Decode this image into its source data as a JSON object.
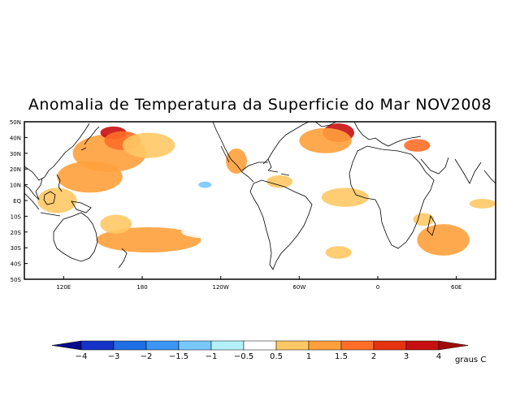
{
  "title": "Anomalia de Temperatura da Superficie do Mar NOV2008",
  "map": {
    "lat_labels": [
      "50N",
      "40N",
      "30N",
      "20N",
      "10N",
      "EQ",
      "10S",
      "20S",
      "30S",
      "40S",
      "50S"
    ],
    "lon_labels": [
      "120E",
      "180",
      "120W",
      "60W",
      "0",
      "60E"
    ],
    "lon_values": [
      120,
      180,
      240,
      300,
      360,
      420
    ],
    "lat_values": [
      50,
      40,
      30,
      20,
      10,
      0,
      -10,
      -20,
      -30,
      -40,
      -50
    ],
    "lon_range": [
      90,
      450
    ],
    "lat_range": [
      -50,
      50
    ],
    "anomaly_regions": [
      {
        "name": "NW Pacific warm",
        "lon": 155,
        "lat": 30,
        "rx": 28,
        "ry": 12,
        "value": 1
      },
      {
        "name": "Kuroshio extension",
        "lon": 158,
        "lat": 43,
        "rx": 10,
        "ry": 4,
        "value": 3
      },
      {
        "name": "Kuroshio extension core",
        "lon": 165,
        "lat": 38,
        "rx": 14,
        "ry": 6,
        "value": 1.5
      },
      {
        "name": "Central N Pacific warm",
        "lon": 185,
        "lat": 35,
        "rx": 20,
        "ry": 8,
        "value": 0.5
      },
      {
        "name": "Western Pacific warm",
        "lon": 140,
        "lat": 15,
        "rx": 25,
        "ry": 10,
        "value": 1
      },
      {
        "name": "Maritime continent",
        "lon": 115,
        "lat": 0,
        "rx": 15,
        "ry": 8,
        "value": 0.5
      },
      {
        "name": "SW Pacific warm",
        "lon": 185,
        "lat": -25,
        "rx": 40,
        "ry": 8,
        "value": 1
      },
      {
        "name": "Coral Sea warm",
        "lon": 160,
        "lat": -15,
        "rx": 12,
        "ry": 6,
        "value": 0.5
      },
      {
        "name": "S Pacific cool",
        "lon": 230,
        "lat": -20,
        "rx": 20,
        "ry": 4,
        "value": -0.5
      },
      {
        "name": "E Pacific cool",
        "lon": 225,
        "lat": 12,
        "rx": 18,
        "ry": 6,
        "value": -0.5
      },
      {
        "name": "E Pacific cold spot",
        "lon": 228,
        "lat": 10,
        "rx": 5,
        "ry": 2,
        "value": -1.5
      },
      {
        "name": "Mexico coast warm",
        "lon": 252,
        "lat": 25,
        "rx": 8,
        "ry": 8,
        "value": 1
      },
      {
        "name": "Caribbean warm",
        "lon": 285,
        "lat": 12,
        "rx": 10,
        "ry": 4,
        "value": 0.5
      },
      {
        "name": "NE Atlantic warm",
        "lon": 330,
        "lat": 43,
        "rx": 12,
        "ry": 6,
        "value": 3
      },
      {
        "name": "N Atlantic warm",
        "lon": 320,
        "lat": 38,
        "rx": 20,
        "ry": 8,
        "value": 1
      },
      {
        "name": "Mediterranean warm",
        "lon": 390,
        "lat": 35,
        "rx": 10,
        "ry": 4,
        "value": 1.5
      },
      {
        "name": "Tropical Atlantic warm",
        "lon": 335,
        "lat": 2,
        "rx": 18,
        "ry": 6,
        "value": 0.5
      },
      {
        "name": "S Atlantic warm",
        "lon": 330,
        "lat": -33,
        "rx": 10,
        "ry": 4,
        "value": 0.5
      },
      {
        "name": "Indian Ocean warm",
        "lon": 410,
        "lat": -25,
        "rx": 20,
        "ry": 10,
        "value": 1
      },
      {
        "name": "Indian Ocean east",
        "lon": 440,
        "lat": -2,
        "rx": 10,
        "ry": 3,
        "value": 0.5
      },
      {
        "name": "Southern Ocean cool",
        "lon": 280,
        "lat": -38,
        "rx": 18,
        "ry": 4,
        "value": -0.5
      },
      {
        "name": "E Indian warm",
        "lon": 395,
        "lat": -12,
        "rx": 8,
        "ry": 4,
        "value": 0.5
      }
    ]
  },
  "colorbar": {
    "labels": [
      "-4",
      "-3",
      "-2",
      "-1.5",
      "-1",
      "-0.5",
      "0.5",
      "1",
      "1.5",
      "2",
      "3",
      "4"
    ],
    "colors": [
      "#0a0a8c",
      "#1432c8",
      "#1e6ee6",
      "#3c96f5",
      "#78c8ff",
      "#b4f0fa",
      "#ffffff",
      "#ffc864",
      "#ffa03c",
      "#ff6e28",
      "#e6320f",
      "#c80f0f",
      "#a00a0a"
    ],
    "unit": "graus C"
  },
  "colors": {
    "land": "#ffffff",
    "coast": "#000000",
    "frame": "#000000"
  }
}
